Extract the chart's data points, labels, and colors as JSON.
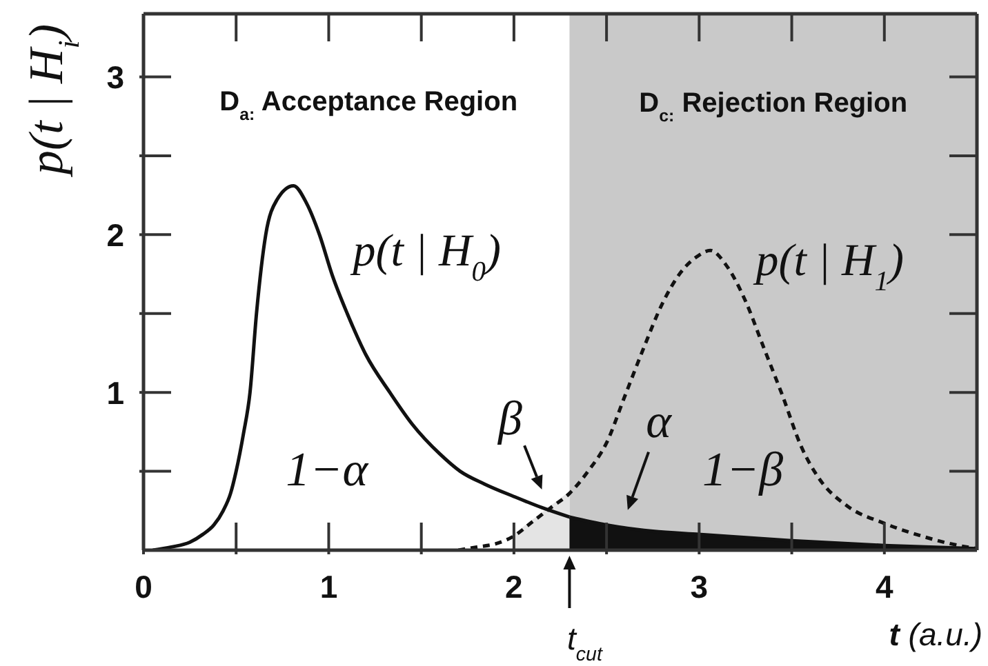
{
  "chart_data": {
    "type": "line",
    "xlabel": "t (a.u.)",
    "ylabel": "p(t | H$_{i}$)",
    "xlim": [
      0,
      4.5
    ],
    "xticks": [
      0,
      {
        "value": 0.5,
        "label": null
      },
      1,
      {
        "value": 1.5,
        "label": null
      },
      2,
      {
        "value": 2.5,
        "label": null
      },
      3,
      {
        "value": 3.5,
        "label": null
      },
      4
    ],
    "ylim": [
      0,
      3.4
    ],
    "yticks": [
      {
        "value": 0.5,
        "label": null
      },
      1,
      {
        "value": 1.5,
        "label": null
      },
      2,
      {
        "value": 2.5,
        "label": null
      },
      3
    ],
    "series": [
      {
        "type": "area",
        "color": "#e4e4e4",
        "x": [
          2.0,
          2.1,
          2.2,
          2.3
        ],
        "values": [
          0.09,
          0.18,
          0.27,
          0.36
        ]
      },
      {
        "type": "area",
        "color": "#111111",
        "x": [
          2.3,
          2.5,
          2.75,
          3.0,
          3.5,
          4.0,
          4.5
        ],
        "values": [
          0.21,
          0.16,
          0.12,
          0.1,
          0.06,
          0.03,
          0.01
        ]
      },
      {
        "name": "p(t | H$_{0}$)",
        "color": "#111111",
        "line_style": "solid",
        "x": [
          0.05,
          0.15,
          0.25,
          0.32,
          0.38,
          0.43,
          0.47,
          0.5,
          0.54,
          0.575,
          0.61,
          0.66,
          0.72,
          0.81,
          0.88,
          0.95,
          1.02,
          1.1,
          1.2,
          1.33,
          1.45,
          1.6,
          1.71,
          1.84,
          2.0,
          2.15,
          2.3
        ],
        "values": [
          0,
          0.02,
          0.05,
          0.1,
          0.16,
          0.25,
          0.36,
          0.5,
          0.74,
          1.0,
          1.5,
          2.0,
          2.22,
          2.31,
          2.2,
          2.0,
          1.74,
          1.5,
          1.24,
          1.0,
          0.8,
          0.61,
          0.5,
          0.42,
          0.34,
          0.27,
          0.21
        ]
      },
      {
        "name": "p(t | H$_{1}$)",
        "color": "#111111",
        "line_style": "dashed",
        "x": [
          1.7,
          1.8,
          1.9,
          2.0,
          2.1,
          2.2,
          2.3,
          2.4,
          2.5,
          2.6,
          2.7,
          2.8,
          2.9,
          3.0,
          3.06,
          3.15,
          3.25,
          3.35,
          3.45,
          3.55,
          3.65,
          3.8,
          4.0,
          4.2,
          4.4,
          4.5
        ],
        "values": [
          0,
          0.02,
          0.04,
          0.09,
          0.18,
          0.27,
          0.36,
          0.5,
          0.68,
          0.98,
          1.28,
          1.56,
          1.76,
          1.87,
          1.9,
          1.8,
          1.58,
          1.28,
          0.98,
          0.66,
          0.45,
          0.28,
          0.17,
          0.09,
          0.03,
          0.01
        ]
      }
    ],
    "bands": [
      {
        "axis": "x",
        "from": 2.3,
        "to": 4.5,
        "label": "D$_{c:}$ Rejection Region",
        "color": "#c9c9c9"
      }
    ],
    "annotations": [
      "D$_{a:}$ Acceptance Region",
      "1−α",
      "1−β",
      "β",
      "α",
      {
        "text": "t$_{cut}$",
        "x": 2.3,
        "y": 0
      }
    ]
  }
}
